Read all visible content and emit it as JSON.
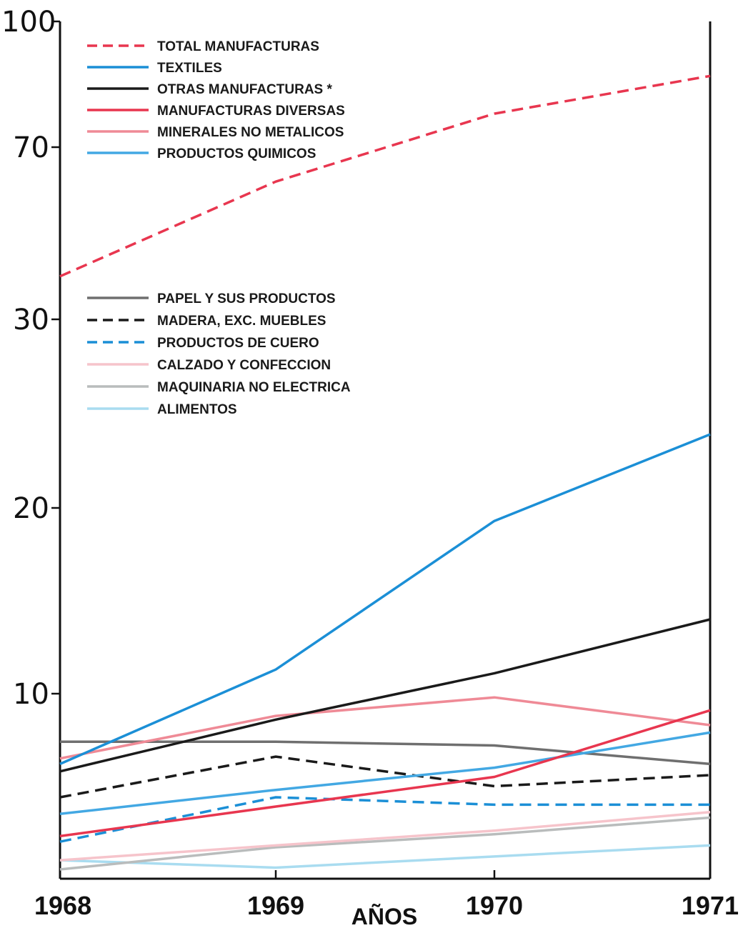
{
  "chart_data": {
    "type": "line",
    "title": "",
    "xlabel": "AÑOS",
    "ylabel": "",
    "x": [
      "1968",
      "1969",
      "1970",
      "1971"
    ],
    "y_ticks": [
      "10",
      "20",
      "30",
      "70",
      "100"
    ],
    "y_scale": "broken (0–25 linear, upper section compressed)",
    "ylim": [
      5,
      100
    ],
    "grid": false,
    "legend_position": "top-left (two groups)",
    "series": [
      {
        "name": "TOTAL MANUFACTURAS",
        "values": [
          40,
          62,
          78,
          87
        ],
        "color": "#e8364f",
        "dash": "dashed",
        "legend_group": 1
      },
      {
        "name": "TEXTILES",
        "values": [
          6.2,
          11.3,
          19.3,
          23.9
        ],
        "color": "#1b8fd6",
        "dash": "solid",
        "legend_group": 1
      },
      {
        "name": "OTRAS MANUFACTURAS *",
        "values": [
          5.8,
          8.6,
          11.1,
          14.0
        ],
        "color": "#1a1a1a",
        "dash": "solid",
        "legend_group": 1
      },
      {
        "name": "MANUFACTURAS DIVERSAS",
        "values": [
          2.3,
          3.9,
          5.5,
          9.1
        ],
        "color": "#e8364f",
        "dash": "solid",
        "legend_group": 1
      },
      {
        "name": "MINERALES NO METALICOS",
        "values": [
          6.5,
          8.8,
          9.8,
          8.3
        ],
        "color": "#ef8a96",
        "dash": "solid",
        "legend_group": 1
      },
      {
        "name": "PRODUCTOS QUIMICOS",
        "values": [
          3.5,
          4.8,
          6.0,
          7.9
        ],
        "color": "#43a8e3",
        "dash": "solid",
        "legend_group": 1
      },
      {
        "name": "PAPEL Y SUS PRODUCTOS",
        "values": [
          7.4,
          7.4,
          7.2,
          6.2
        ],
        "color": "#6f6f6f",
        "dash": "solid",
        "legend_group": 2
      },
      {
        "name": "MADERA, EXC. MUEBLES",
        "values": [
          4.4,
          6.6,
          5.0,
          5.6
        ],
        "color": "#1a1a1a",
        "dash": "dashed",
        "legend_group": 2
      },
      {
        "name": "PRODUCTOS DE CUERO",
        "values": [
          2.0,
          4.4,
          4.0,
          4.0
        ],
        "color": "#1b8fd6",
        "dash": "dashed",
        "legend_group": 2
      },
      {
        "name": "CALZADO Y CONFECCION",
        "values": [
          1.0,
          1.8,
          2.6,
          3.6
        ],
        "color": "#f6c4cb",
        "dash": "solid",
        "legend_group": 2
      },
      {
        "name": "MAQUINARIA NO ELECTRICA",
        "values": [
          0.5,
          1.7,
          2.4,
          3.3
        ],
        "color": "#b9bcbc",
        "dash": "solid",
        "legend_group": 2
      },
      {
        "name": "ALIMENTOS",
        "values": [
          1.0,
          0.6,
          1.2,
          1.8
        ],
        "color": "#a9dcf0",
        "dash": "solid",
        "legend_group": 2
      }
    ]
  }
}
